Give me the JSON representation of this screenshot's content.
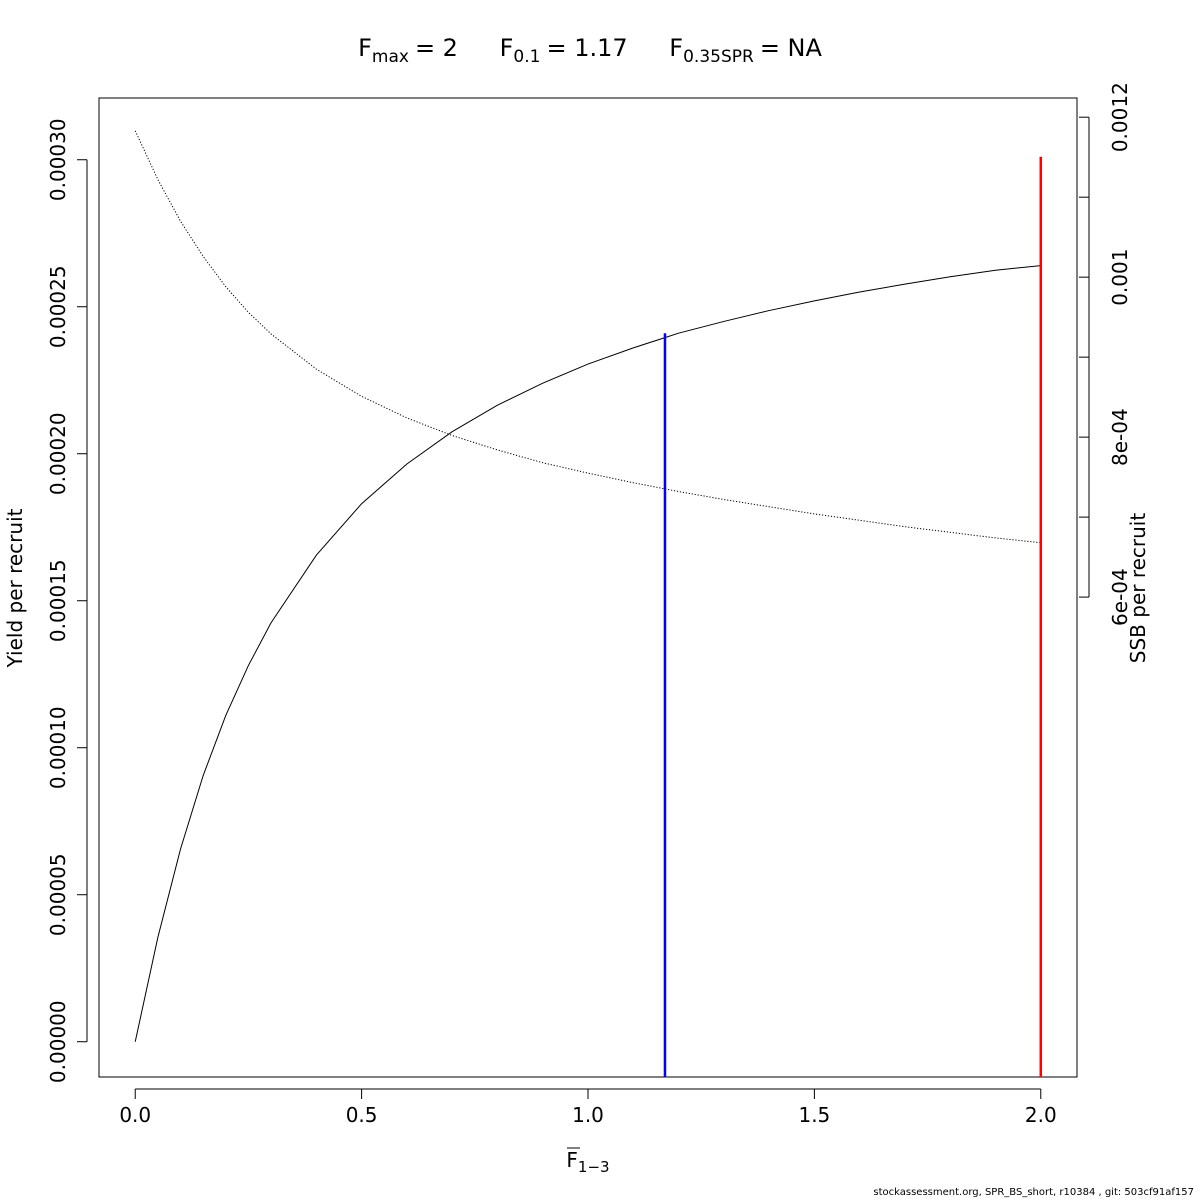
{
  "chart_data": {
    "type": "line",
    "title": {
      "fmax_label": "F",
      "fmax_sub": "max",
      "fmax_value": "= 2",
      "f01_label": "F",
      "f01_sub": "0.1",
      "f01_value": "= 1.17",
      "fspr_label": "F",
      "fspr_sub": "0.35SPR",
      "fspr_value": "= NA"
    },
    "xlabel": {
      "main": "F",
      "sub": "1−3",
      "overline": true
    },
    "ylabel_left": "Yield per recruit",
    "ylabel_right": "SSB per recruit",
    "xlim": [
      -0.08,
      2.08
    ],
    "ylim_left": [
      -1.2e-05,
      0.000321
    ],
    "ylim_right": [
      0.0,
      0.001224
    ],
    "x_ticks": [
      0.0,
      0.5,
      1.0,
      1.5,
      2.0
    ],
    "x_tick_labels": [
      "0.0",
      "0.5",
      "1.0",
      "1.5",
      "2.0"
    ],
    "y_left_ticks": [
      0.0,
      5e-05,
      0.0001,
      0.00015,
      0.0002,
      0.00025,
      0.0003
    ],
    "y_left_tick_labels": [
      "0.00000",
      "0.00005",
      "0.00010",
      "0.00015",
      "0.00020",
      "0.00025",
      "0.00030"
    ],
    "y_right_ticks": [
      0.0006,
      0.0007,
      0.0008,
      0.0009,
      0.001,
      0.0011,
      0.0012
    ],
    "y_right_tick_labels": [
      "6e-04",
      "",
      "8e-04",
      "",
      "0.001",
      "",
      "0.0012"
    ],
    "series": [
      {
        "name": "Yield per recruit",
        "axis": "left",
        "style": "solid",
        "color": "#000000",
        "x": [
          0.0,
          0.05,
          0.1,
          0.15,
          0.2,
          0.25,
          0.3,
          0.4,
          0.5,
          0.6,
          0.7,
          0.8,
          0.9,
          1.0,
          1.1,
          1.17,
          1.2,
          1.3,
          1.4,
          1.5,
          1.6,
          1.7,
          1.8,
          1.9,
          2.0
        ],
        "y": [
          0.0,
          3.55e-05,
          6.55e-05,
          9.05e-05,
          0.000111,
          0.000128,
          0.0001425,
          0.0001655,
          0.000183,
          0.0001965,
          0.0002075,
          0.0002165,
          0.000224,
          0.0002305,
          0.000236,
          0.0002395,
          0.000241,
          0.000245,
          0.0002487,
          0.000252,
          0.000255,
          0.0002577,
          0.0002602,
          0.0002624,
          0.000264
        ]
      },
      {
        "name": "SSB per recruit",
        "axis": "right",
        "style": "dotted",
        "color": "#000000",
        "x": [
          0.0,
          0.05,
          0.1,
          0.15,
          0.2,
          0.25,
          0.3,
          0.4,
          0.5,
          0.6,
          0.7,
          0.8,
          0.9,
          1.0,
          1.1,
          1.2,
          1.3,
          1.4,
          1.5,
          1.6,
          1.7,
          1.8,
          1.9,
          2.0
        ],
        "y": [
          0.001183,
          0.001122,
          0.00107,
          0.001026,
          0.000988,
          0.000956,
          0.000929,
          0.000885,
          0.000851,
          0.000824,
          0.000802,
          0.000784,
          0.000768,
          0.000755,
          0.000743,
          0.000732,
          0.000722,
          0.000713,
          0.000704,
          0.000696,
          0.000688,
          0.000681,
          0.000674,
          0.000668
        ]
      }
    ],
    "reference_lines": [
      {
        "name": "F0.1",
        "x": 1.17,
        "y_top": 0.000241,
        "color": "#0000ff"
      },
      {
        "name": "Fmax",
        "x": 2.0,
        "y_top": 0.000301,
        "color": "#ff0000"
      }
    ],
    "grid": false,
    "legend": "none"
  },
  "footer": "stockassessment.org, SPR_BS_short, r10384 , git: 503cf91af157"
}
